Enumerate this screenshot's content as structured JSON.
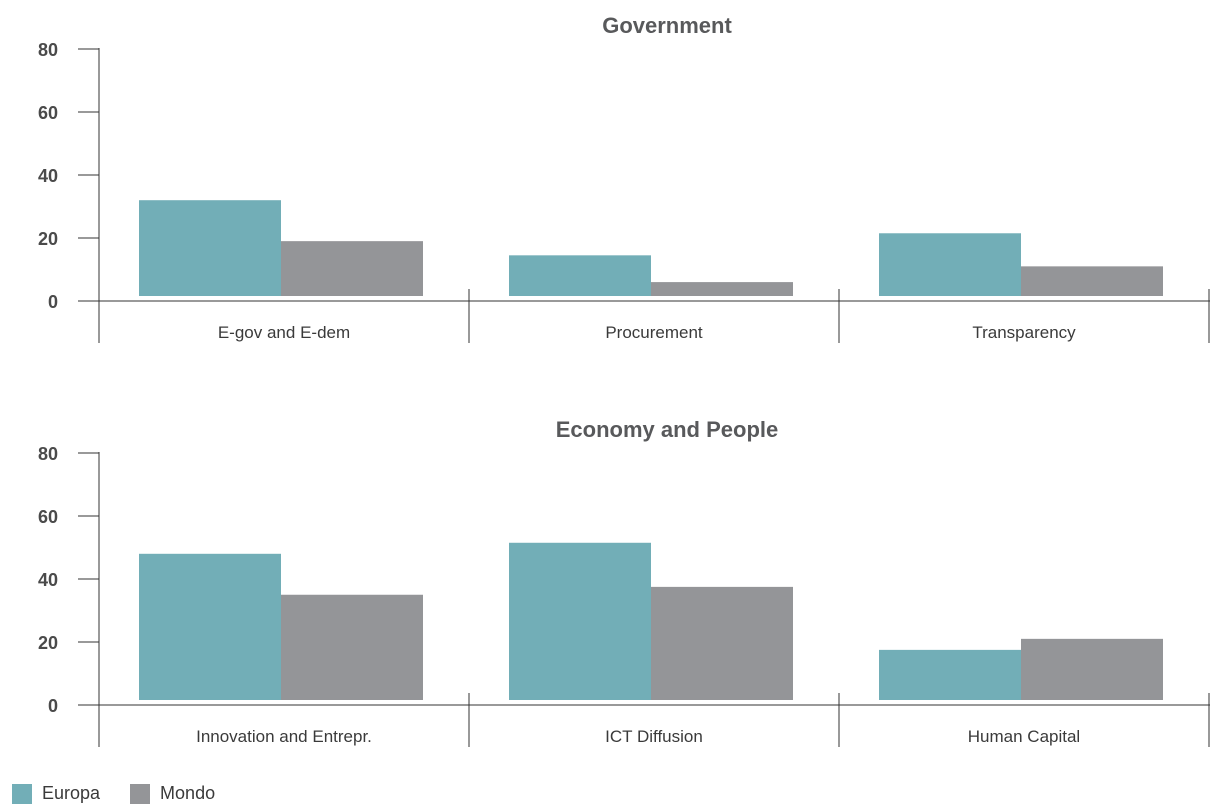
{
  "chart_data": [
    {
      "type": "bar",
      "title": "Government",
      "categories": [
        "E-gov and E-dem",
        "Procurement",
        "Transparency"
      ],
      "series": [
        {
          "name": "Europa",
          "values": [
            32,
            14.5,
            21.5
          ]
        },
        {
          "name": "Mondo",
          "values": [
            19,
            6,
            11
          ]
        }
      ],
      "ylim": [
        0,
        80
      ],
      "yticks": [
        0,
        20,
        40,
        60,
        80
      ],
      "grid": false
    },
    {
      "type": "bar",
      "title": "Economy and People",
      "categories": [
        "Innovation and Entrepr.",
        "ICT Diffusion",
        "Human Capital"
      ],
      "series": [
        {
          "name": "Europa",
          "values": [
            48,
            51.5,
            17.5
          ]
        },
        {
          "name": "Mondo",
          "values": [
            35,
            37.5,
            21
          ]
        }
      ],
      "ylim": [
        0,
        80
      ],
      "yticks": [
        0,
        20,
        40,
        60,
        80
      ],
      "grid": false
    }
  ],
  "legend": {
    "placement": "bottom-left",
    "items": [
      {
        "label": "Europa",
        "color": "#72aeb7"
      },
      {
        "label": "Mondo",
        "color": "#949598"
      }
    ]
  },
  "colors": {
    "europa": "#72aeb7",
    "mondo": "#949598"
  }
}
